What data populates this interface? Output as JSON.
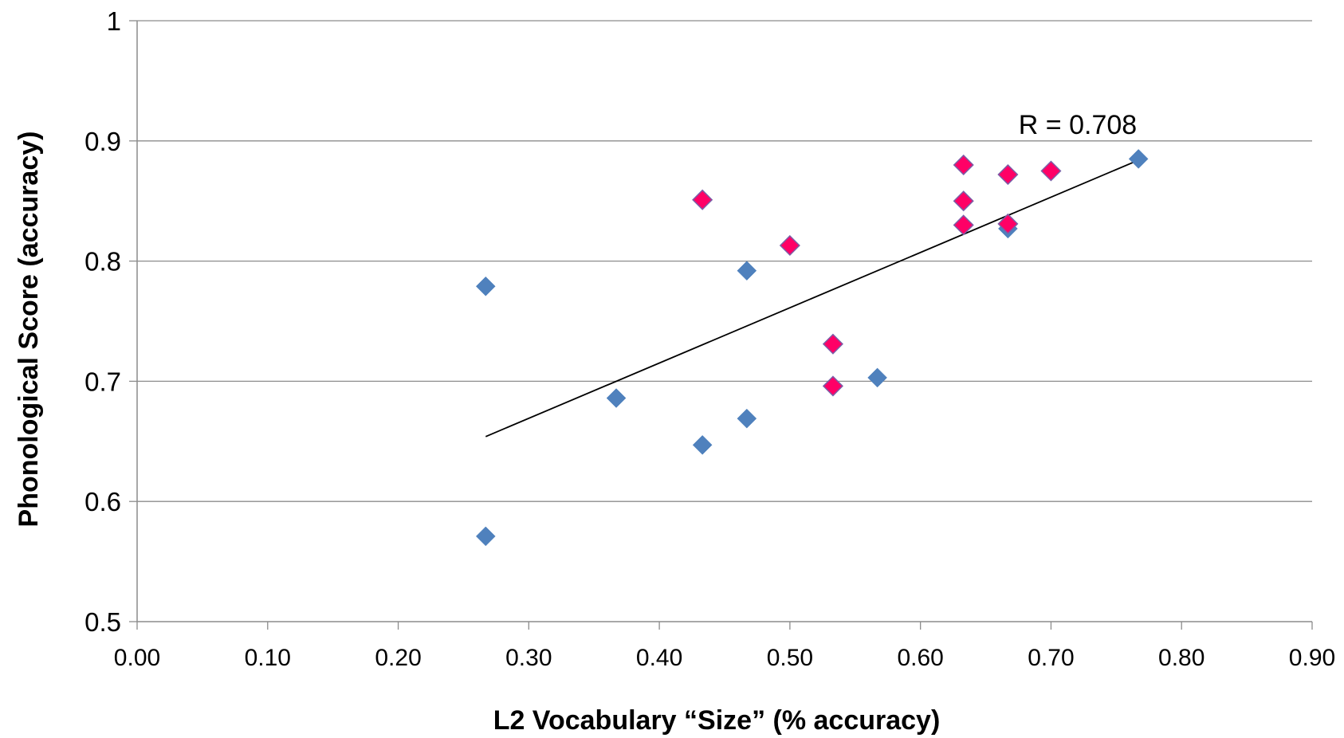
{
  "chart_data": {
    "type": "scatter",
    "xlabel": "L2 Vocabulary “Size” (% accuracy)",
    "ylabel": "Phonological Score (accuracy)",
    "xlim": [
      0,
      0.9
    ],
    "ylim": [
      0.5,
      1.0
    ],
    "x_ticks": [
      "0.00",
      "0.10",
      "0.20",
      "0.30",
      "0.40",
      "0.50",
      "0.60",
      "0.70",
      "0.80",
      "0.90"
    ],
    "y_ticks": [
      "0.5",
      "0.6",
      "0.7",
      "0.8",
      "0.9",
      "1"
    ],
    "grid": "horizontal",
    "series": [
      {
        "color": "#4f81bd",
        "marker": "diamond",
        "points": [
          {
            "x": 0.267,
            "y": 0.779
          },
          {
            "x": 0.267,
            "y": 0.571
          },
          {
            "x": 0.367,
            "y": 0.686
          },
          {
            "x": 0.433,
            "y": 0.647
          },
          {
            "x": 0.467,
            "y": 0.792
          },
          {
            "x": 0.467,
            "y": 0.669
          },
          {
            "x": 0.567,
            "y": 0.703
          },
          {
            "x": 0.667,
            "y": 0.827
          },
          {
            "x": 0.767,
            "y": 0.885
          }
        ]
      },
      {
        "color": "#ff0066",
        "marker": "diamond",
        "points": [
          {
            "x": 0.433,
            "y": 0.851
          },
          {
            "x": 0.5,
            "y": 0.813
          },
          {
            "x": 0.533,
            "y": 0.731
          },
          {
            "x": 0.533,
            "y": 0.696
          },
          {
            "x": 0.633,
            "y": 0.88
          },
          {
            "x": 0.633,
            "y": 0.85
          },
          {
            "x": 0.633,
            "y": 0.83
          },
          {
            "x": 0.667,
            "y": 0.872
          },
          {
            "x": 0.667,
            "y": 0.831
          },
          {
            "x": 0.7,
            "y": 0.875
          }
        ]
      }
    ],
    "trendline": {
      "x1": 0.267,
      "y1": 0.654,
      "x2": 0.767,
      "y2": 0.884,
      "color": "#000000"
    },
    "annotation": "R = 0.708"
  }
}
